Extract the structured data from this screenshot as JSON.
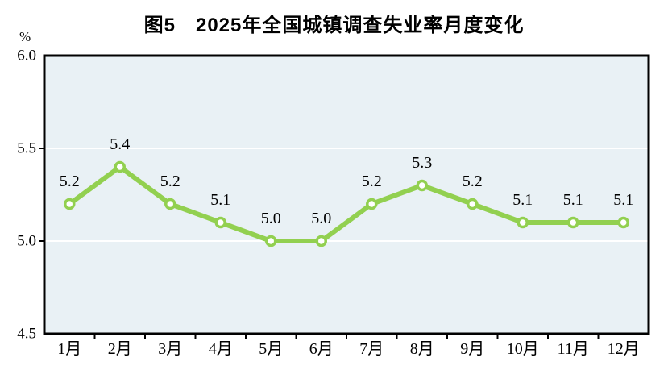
{
  "figure": {
    "title": "图5　2025年全国城镇调查失业率月度变化",
    "unit_label": "%"
  },
  "chart_data": {
    "type": "line",
    "title": "图5　2025年全国城镇调查失业率月度变化",
    "categories": [
      "1月",
      "2月",
      "3月",
      "4月",
      "5月",
      "6月",
      "7月",
      "8月",
      "9月",
      "10月",
      "11月",
      "12月"
    ],
    "values": [
      5.2,
      5.4,
      5.2,
      5.1,
      5.0,
      5.0,
      5.2,
      5.3,
      5.2,
      5.1,
      5.1,
      5.1
    ],
    "data_labels": [
      "5.2",
      "5.4",
      "5.2",
      "5.1",
      "5.0",
      "5.0",
      "5.2",
      "5.3",
      "5.2",
      "5.1",
      "5.1",
      "5.1"
    ],
    "xlabel": "",
    "ylabel": "%",
    "ylim": [
      4.5,
      6.0
    ],
    "yticks": [
      4.5,
      5.0,
      5.5,
      6.0
    ],
    "ytick_labels": [
      "4.5",
      "5.0",
      "5.5",
      "6.0"
    ],
    "grid": "horizontal",
    "legend": "none",
    "colors": {
      "line": "#92d050",
      "marker_fill": "#ffffff",
      "plot_background": "#e9f1f5",
      "gridline": "#ffffff",
      "axis": "#000000",
      "text": "#000000"
    }
  }
}
